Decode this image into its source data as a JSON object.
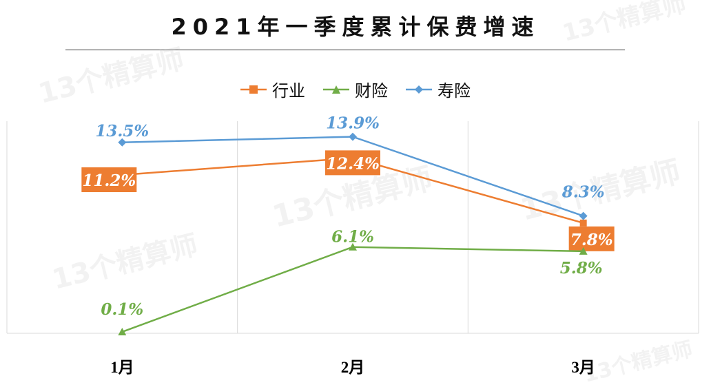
{
  "chart_data": {
    "type": "line",
    "title": "2021年一季度累计保费增速",
    "categories": [
      "1月",
      "2月",
      "3月"
    ],
    "series": [
      {
        "name": "行业",
        "color": "#ED7D31",
        "values": [
          11.2,
          12.4,
          7.8
        ],
        "labels": [
          "11.2%",
          "12.4%",
          "7.8%"
        ],
        "marker": "square"
      },
      {
        "name": "财险",
        "color": "#70AD47",
        "values": [
          0.1,
          6.1,
          5.8
        ],
        "labels": [
          "0.1%",
          "6.1%",
          "5.8%"
        ],
        "marker": "triangle"
      },
      {
        "name": "寿险",
        "color": "#5B9BD5",
        "values": [
          13.5,
          13.9,
          8.3
        ],
        "labels": [
          "13.5%",
          "13.9%",
          "8.3%"
        ],
        "marker": "diamond"
      }
    ],
    "ylim": [
      0,
      15
    ],
    "grid": "vertical",
    "legend": "top-center",
    "xlabel": "",
    "ylabel": ""
  },
  "watermark": "13个精算师"
}
